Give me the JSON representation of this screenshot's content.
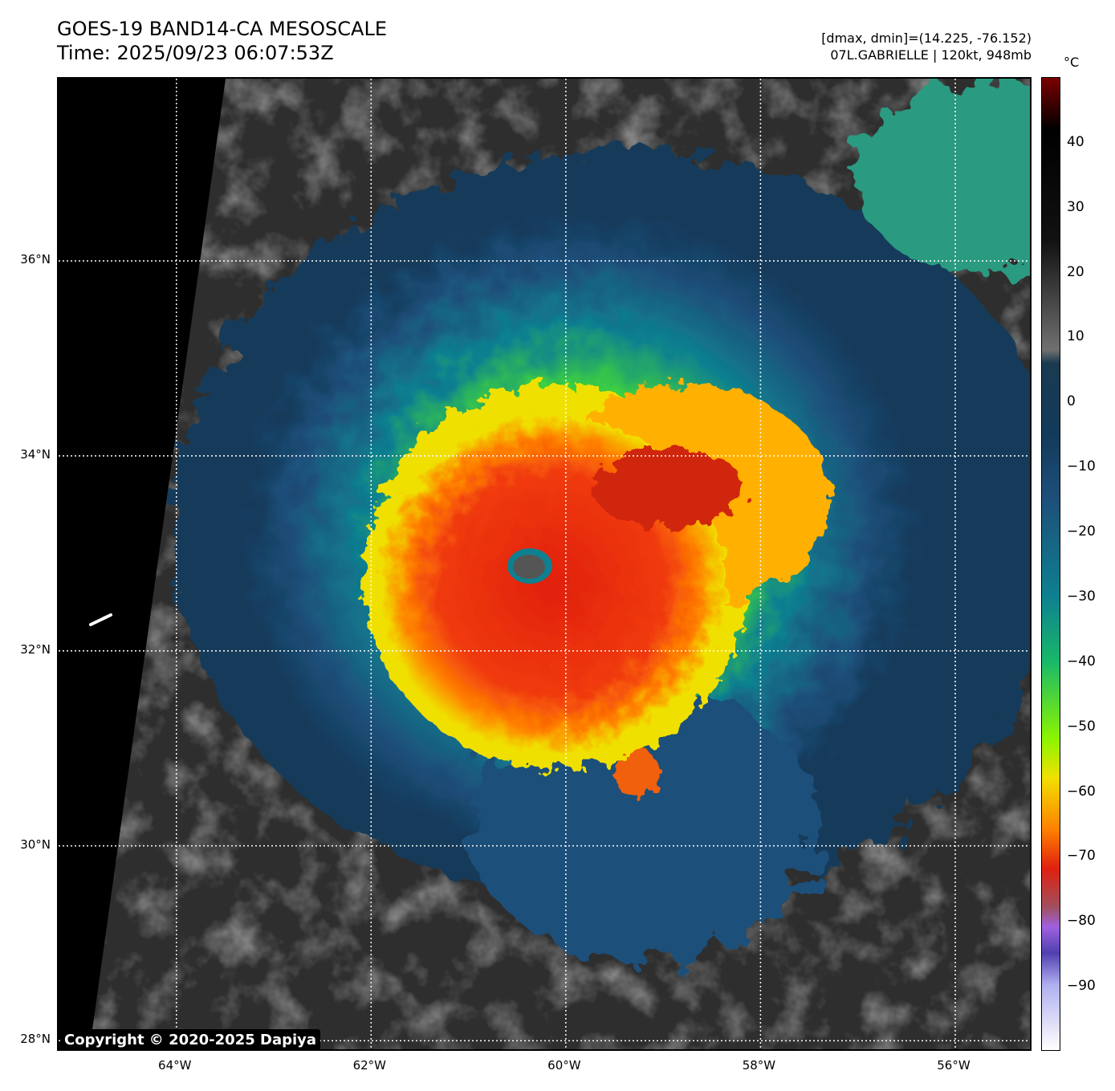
{
  "header": {
    "title": "GOES-19 BAND14-CA MESOSCALE",
    "time": "Time: 2025/09/23 06:07:53Z",
    "range_info": "[dmax, dmin]=(14.225, -76.152)",
    "storm_info": "07L.GABRIELLE | 120kt, 948mb"
  },
  "map": {
    "lon_range": [
      -65.21,
      -55.2
    ],
    "lat_range": [
      27.88,
      37.87
    ],
    "lon_ticks": [
      {
        "value": -64,
        "label": "64°W"
      },
      {
        "value": -62,
        "label": "62°W"
      },
      {
        "value": -60,
        "label": "60°W"
      },
      {
        "value": -58,
        "label": "58°W"
      },
      {
        "value": -56,
        "label": "56°W"
      }
    ],
    "lat_ticks": [
      {
        "value": 36,
        "label": "36°N"
      },
      {
        "value": 34,
        "label": "34°N"
      },
      {
        "value": 32,
        "label": "32°N"
      },
      {
        "value": 30,
        "label": "30°N"
      },
      {
        "value": 28,
        "label": "28°N"
      }
    ],
    "storm_center": {
      "lon": -60.37,
      "lat": 32.88
    },
    "copyright": "Copyright © 2020-2025 Dapiya"
  },
  "colorbar": {
    "unit": "°C",
    "range": [
      -100,
      50
    ],
    "ticks": [
      {
        "value": 40,
        "label": "40"
      },
      {
        "value": 30,
        "label": "30"
      },
      {
        "value": 20,
        "label": "20"
      },
      {
        "value": 10,
        "label": "10"
      },
      {
        "value": 0,
        "label": "0"
      },
      {
        "value": -10,
        "label": "−10"
      },
      {
        "value": -20,
        "label": "−20"
      },
      {
        "value": -30,
        "label": "−30"
      },
      {
        "value": -40,
        "label": "−40"
      },
      {
        "value": -50,
        "label": "−50"
      },
      {
        "value": -60,
        "label": "−60"
      },
      {
        "value": -70,
        "label": "−70"
      },
      {
        "value": -80,
        "label": "−80"
      },
      {
        "value": -90,
        "label": "−90"
      }
    ],
    "stops": [
      {
        "value": 50,
        "color": "#7a0000"
      },
      {
        "value": 42,
        "color": "#000000"
      },
      {
        "value": 25,
        "color": "#111111"
      },
      {
        "value": 8,
        "color": "#707070"
      },
      {
        "value": 6,
        "color": "#1a3a50"
      },
      {
        "value": -5,
        "color": "#123a5a"
      },
      {
        "value": -15,
        "color": "#1e4f7a"
      },
      {
        "value": -30,
        "color": "#0e8090"
      },
      {
        "value": -40,
        "color": "#18b86a"
      },
      {
        "value": -52,
        "color": "#8cf500"
      },
      {
        "value": -58,
        "color": "#f0e000"
      },
      {
        "value": -66,
        "color": "#ff8000"
      },
      {
        "value": -72,
        "color": "#e02010"
      },
      {
        "value": -78,
        "color": "#a05060"
      },
      {
        "value": -81,
        "color": "#a060e0"
      },
      {
        "value": -85,
        "color": "#5040b0"
      },
      {
        "value": -90,
        "color": "#b0b0f0"
      },
      {
        "value": -100,
        "color": "#ffffff"
      }
    ]
  }
}
